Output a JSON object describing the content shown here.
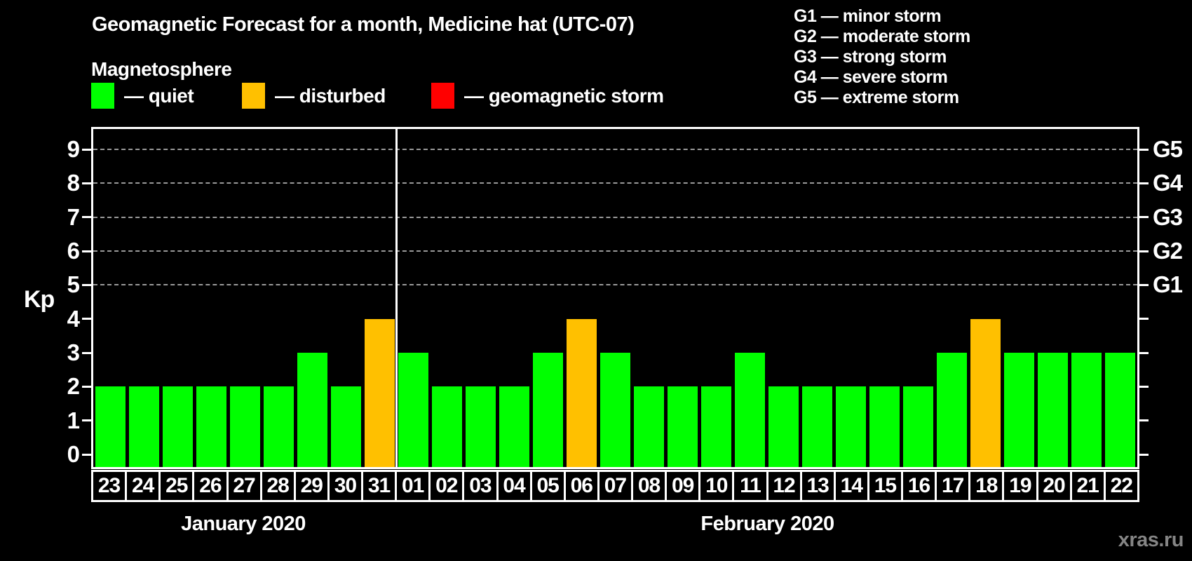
{
  "page": {
    "subtitle": "Magnetosphere",
    "watermark": "xras.ru",
    "kp_axis_title": "Kp"
  },
  "legend": {
    "items": [
      {
        "name": "quiet",
        "label": "— quiet",
        "color": "#00ff00"
      },
      {
        "name": "disturbed",
        "label": "— disturbed",
        "color": "#ffc000"
      },
      {
        "name": "storm",
        "label": "— geomagnetic storm",
        "color": "#ff0000"
      }
    ]
  },
  "g_legend": {
    "lines": [
      "G1 — minor storm",
      "G2 — moderate storm",
      "G3 — strong storm",
      "G4 — severe storm",
      "G5 — extreme storm"
    ]
  },
  "chart_data": {
    "type": "bar",
    "title": "Geomagnetic Forecast for a month, Medicine hat (UTC-07)",
    "ylabel": "Kp",
    "ylim": [
      0,
      9
    ],
    "y_ticks": [
      0,
      1,
      2,
      3,
      4,
      5,
      6,
      7,
      8,
      9
    ],
    "gridline_levels": [
      5,
      6,
      7,
      8,
      9
    ],
    "right_axis": [
      {
        "kp": 5,
        "label": "G1"
      },
      {
        "kp": 6,
        "label": "G2"
      },
      {
        "kp": 7,
        "label": "G3"
      },
      {
        "kp": 8,
        "label": "G4"
      },
      {
        "kp": 9,
        "label": "G5"
      }
    ],
    "status_colors": {
      "quiet": "#00ff00",
      "disturbed": "#ffc000",
      "storm": "#ff0000"
    },
    "grid": true,
    "legend_position": "top",
    "groups": [
      {
        "month": "January 2020",
        "days": [
          "23",
          "24",
          "25",
          "26",
          "27",
          "28",
          "29",
          "30",
          "31"
        ],
        "values": [
          2,
          2,
          2,
          2,
          2,
          2,
          3,
          2,
          4
        ],
        "statuses": [
          "quiet",
          "quiet",
          "quiet",
          "quiet",
          "quiet",
          "quiet",
          "quiet",
          "quiet",
          "disturbed"
        ]
      },
      {
        "month": "February 2020",
        "days": [
          "01",
          "02",
          "03",
          "04",
          "05",
          "06",
          "07",
          "08",
          "09",
          "10",
          "11",
          "12",
          "13",
          "14",
          "15",
          "16",
          "17",
          "18",
          "19",
          "20",
          "21",
          "22"
        ],
        "values": [
          3,
          2,
          2,
          2,
          3,
          4,
          3,
          2,
          2,
          2,
          3,
          2,
          2,
          2,
          2,
          2,
          3,
          4,
          3,
          3,
          3,
          3
        ],
        "statuses": [
          "quiet",
          "quiet",
          "quiet",
          "quiet",
          "quiet",
          "disturbed",
          "quiet",
          "quiet",
          "quiet",
          "quiet",
          "quiet",
          "quiet",
          "quiet",
          "quiet",
          "quiet",
          "quiet",
          "quiet",
          "disturbed",
          "quiet",
          "quiet",
          "quiet",
          "quiet"
        ]
      }
    ]
  }
}
